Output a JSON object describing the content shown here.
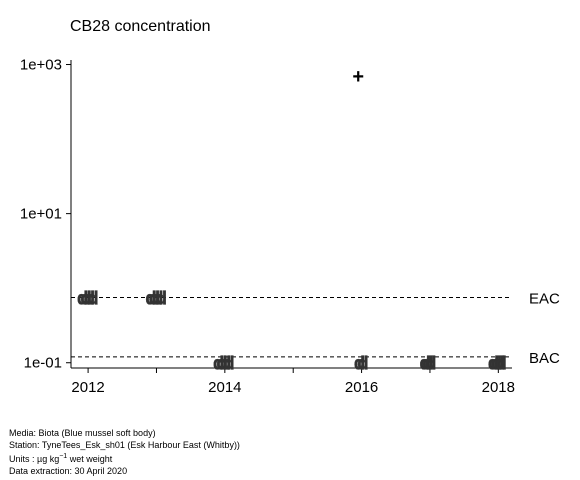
{
  "chart_data": {
    "type": "scatter",
    "title": "CB28 concentration",
    "xlabel": "",
    "ylabel": "",
    "y_scale": "log",
    "xlim": [
      2011.75,
      2018.2
    ],
    "ylim": [
      0.085,
      1150
    ],
    "x_ticks": [
      2012,
      2013,
      2014,
      2015,
      2016,
      2017,
      2018
    ],
    "x_tick_labels": [
      "2012",
      "",
      "2014",
      "",
      "2016",
      "",
      "2018"
    ],
    "y_ticks": [
      0.1,
      10,
      1000
    ],
    "y_tick_labels": [
      "1e-01",
      "1e+01",
      "1e+03"
    ],
    "reference_lines": [
      {
        "name": "EAC",
        "value": 0.75
      },
      {
        "name": "BAC",
        "value": 0.12
      }
    ],
    "points": [
      {
        "x": 2011.92,
        "y": 0.75,
        "marker": "d"
      },
      {
        "x": 2011.97,
        "y": 0.75,
        "marker": "d"
      },
      {
        "x": 2012.02,
        "y": 0.75,
        "marker": "d"
      },
      {
        "x": 2012.07,
        "y": 0.75,
        "marker": "d"
      },
      {
        "x": 2012.92,
        "y": 0.75,
        "marker": "d"
      },
      {
        "x": 2012.97,
        "y": 0.75,
        "marker": "d"
      },
      {
        "x": 2013.02,
        "y": 0.75,
        "marker": "d"
      },
      {
        "x": 2013.07,
        "y": 0.75,
        "marker": "d"
      },
      {
        "x": 2013.91,
        "y": 0.1,
        "marker": "d"
      },
      {
        "x": 2013.96,
        "y": 0.1,
        "marker": "d"
      },
      {
        "x": 2014.01,
        "y": 0.1,
        "marker": "d"
      },
      {
        "x": 2014.06,
        "y": 0.1,
        "marker": "d"
      },
      {
        "x": 2015.97,
        "y": 0.1,
        "marker": "d"
      },
      {
        "x": 2016.02,
        "y": 0.1,
        "marker": "d"
      },
      {
        "x": 2015.95,
        "y": 700,
        "marker": "+"
      },
      {
        "x": 2016.93,
        "y": 0.1,
        "marker": "d"
      },
      {
        "x": 2016.97,
        "y": 0.1,
        "marker": "d"
      },
      {
        "x": 2017.01,
        "y": 0.1,
        "marker": "d"
      },
      {
        "x": 2017.93,
        "y": 0.1,
        "marker": "d"
      },
      {
        "x": 2017.97,
        "y": 0.1,
        "marker": "d"
      },
      {
        "x": 2018.01,
        "y": 0.1,
        "marker": "d"
      },
      {
        "x": 2018.04,
        "y": 0.1,
        "marker": "d"
      }
    ]
  },
  "footer": {
    "media": "Media: Biota (Blue mussel soft body)",
    "station": "Station: TyneTees_Esk_sh01 (Esk Harbour East (Whitby))",
    "units_prefix": "Units :  µg kg",
    "units_exp": "−1",
    "units_suffix": " wet weight",
    "extraction": "Data extraction: 30 April 2020"
  }
}
